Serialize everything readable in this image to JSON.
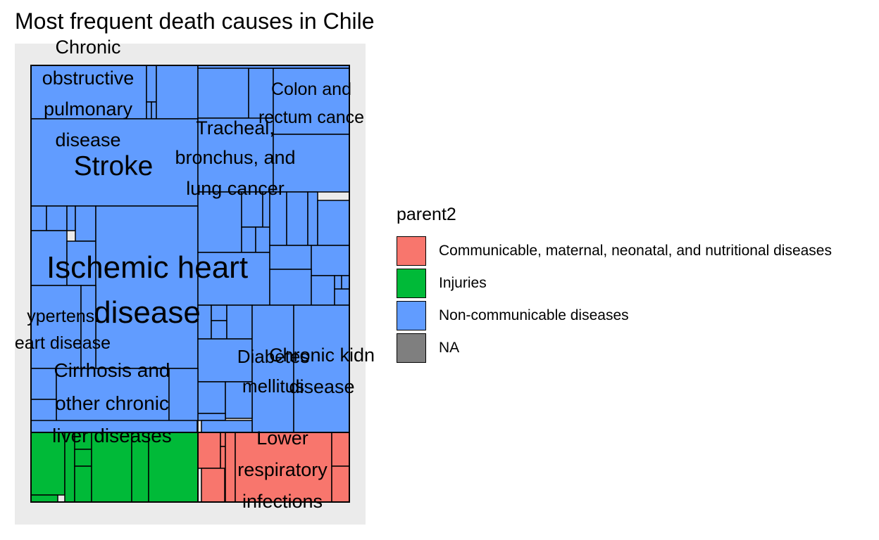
{
  "chart_data": {
    "type": "treemap",
    "title": "Most frequent death causes in Chile",
    "legend": {
      "title": "parent2",
      "position": "right",
      "entries": [
        {
          "label": "Communicable, maternal, neonatal, and nutritional diseases",
          "color": "#F8766D"
        },
        {
          "label": "Injuries",
          "color": "#00BA38"
        },
        {
          "label": "Non-communicable diseases",
          "color": "#619CFF"
        },
        {
          "label": "NA",
          "color": "#7F7F7F"
        }
      ]
    },
    "groups": [
      {
        "name": "Non-communicable diseases",
        "color": "#619CFF"
      },
      {
        "name": "Injuries",
        "color": "#00BA38"
      },
      {
        "name": "Communicable, maternal, neonatal, and nutritional diseases",
        "color": "#F8766D"
      }
    ],
    "labeled_tiles": [
      {
        "label": "Ischemic heart disease",
        "group": "Non-communicable diseases"
      },
      {
        "label": "Stroke",
        "group": "Non-communicable diseases"
      },
      {
        "label": "Chronic obstructive pulmonary disease",
        "group": "Non-communicable diseases"
      },
      {
        "label": "Tracheal, bronchus, and lung cancer",
        "group": "Non-communicable diseases"
      },
      {
        "label": "Colon and rectum cancer",
        "group": "Non-communicable diseases"
      },
      {
        "label": "Hypertensive heart disease",
        "group": "Non-communicable diseases"
      },
      {
        "label": "Cirrhosis and other chronic liver diseases",
        "group": "Non-communicable diseases"
      },
      {
        "label": "Diabetes mellitus",
        "group": "Non-communicable diseases"
      },
      {
        "label": "Chronic kidney disease",
        "group": "Non-communicable diseases"
      },
      {
        "label": "Lower respiratory infections",
        "group": "Communicable, maternal, neonatal, and nutritional diseases"
      }
    ]
  }
}
